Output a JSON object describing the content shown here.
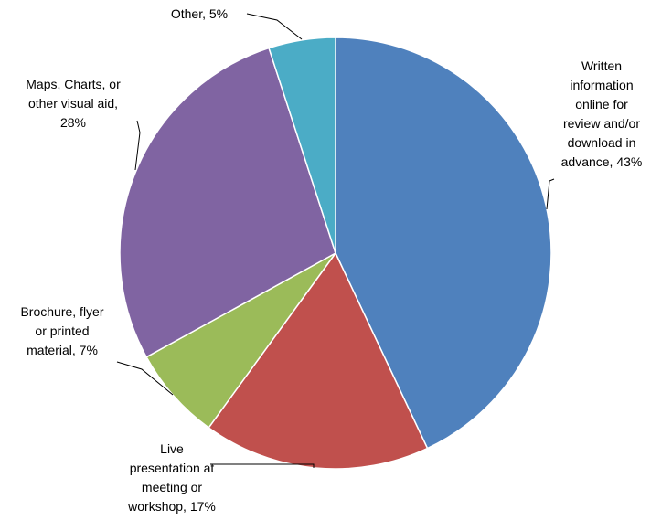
{
  "chart_data": {
    "type": "pie",
    "title": "",
    "slices": [
      {
        "label": [
          "Written",
          "information",
          "online for",
          "review and/or",
          "download in",
          "advance, 43%"
        ],
        "value": 43,
        "color": "#4F81BD"
      },
      {
        "label": [
          "Live",
          "presentation at",
          "meeting or",
          "workshop, 17%"
        ],
        "value": 17,
        "color": "#C0504D"
      },
      {
        "label": [
          "Brochure, flyer",
          "or printed",
          "material, 7%"
        ],
        "value": 7,
        "color": "#9BBB59"
      },
      {
        "label": [
          "Maps, Charts, or",
          "other visual aid,",
          "28%"
        ],
        "value": 28,
        "color": "#8064A2"
      },
      {
        "label": [
          "Other, 5%"
        ],
        "value": 5,
        "color": "#4BACC6"
      }
    ]
  }
}
